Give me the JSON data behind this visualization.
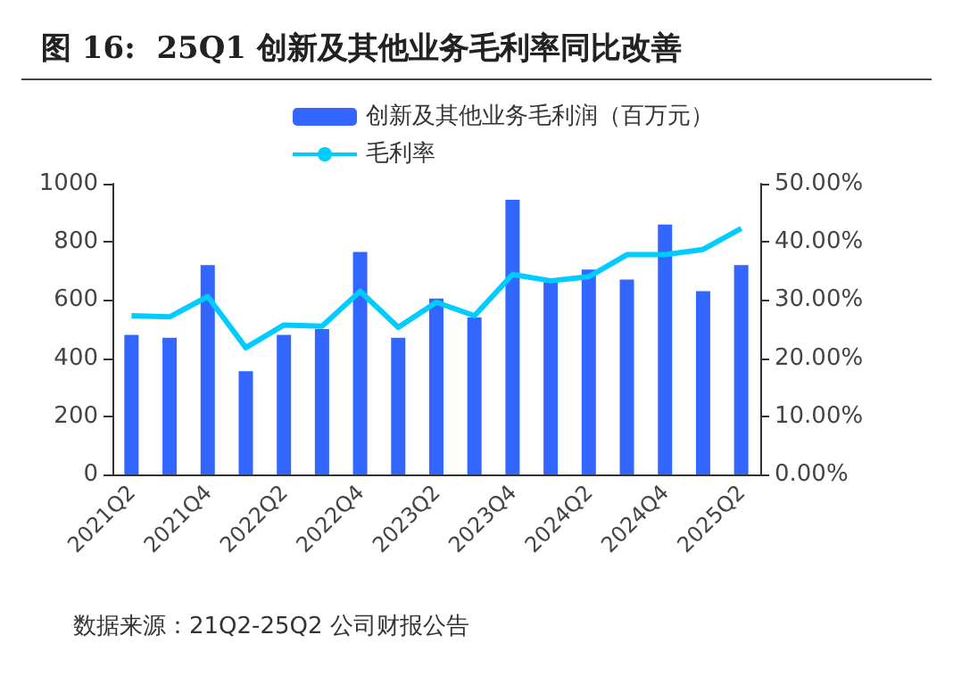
{
  "chart_data": {
    "type": "bar",
    "title": "图 16:  25Q1 创新及其他业务毛利率同比改善",
    "categories": [
      "2021Q2",
      null,
      "2021Q4",
      null,
      "2022Q2",
      null,
      "2022Q4",
      null,
      "2023Q2",
      null,
      "2023Q4",
      null,
      "2024Q2",
      null,
      "2024Q4",
      null,
      "2025Q2"
    ],
    "series": [
      {
        "name": "创新及其他业务毛利润（百万元）",
        "color": "#3366ff",
        "values": [
          480,
          470,
          720,
          355,
          480,
          500,
          765,
          470,
          605,
          540,
          945,
          660,
          705,
          670,
          860,
          630,
          720
        ]
      },
      {
        "name": "毛利率",
        "type": "line",
        "axis": "y2",
        "color": "#00ccff",
        "values": [
          27.3,
          27.1,
          30.6,
          21.8,
          25.7,
          25.5,
          31.5,
          25.3,
          29.6,
          27.3,
          34.4,
          33.3,
          34.0,
          37.8,
          37.8,
          38.7,
          42.3
        ]
      }
    ],
    "ylim": [
      0,
      1000
    ],
    "yticks": [
      0,
      200,
      400,
      600,
      800,
      1000
    ],
    "y2lim": [
      0,
      50
    ],
    "y2ticks": [
      {
        "value": 0,
        "label": "0.00%"
      },
      {
        "value": 10,
        "label": "10.00%"
      },
      {
        "value": 20,
        "label": "20.00%"
      },
      {
        "value": 30,
        "label": "30.00%"
      },
      {
        "value": 40,
        "label": "40.00%"
      },
      {
        "value": 50,
        "label": "50.00%"
      }
    ],
    "legend": "top",
    "grid": false,
    "marker": "none",
    "annotations": [
      "数据来源：21Q2-25Q2 公司财报公告"
    ]
  }
}
